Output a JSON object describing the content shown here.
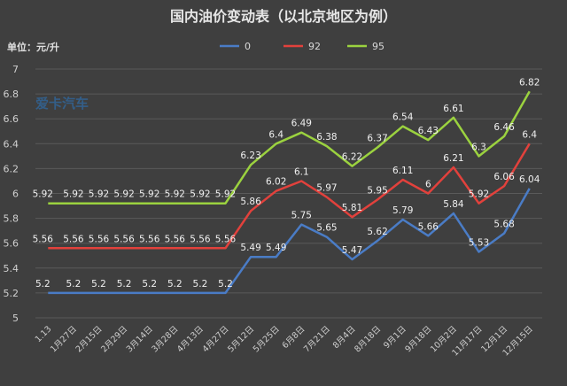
{
  "chart_data": {
    "type": "line",
    "title": "国内油价变动表（以北京地区为例）",
    "unit_label": "单位：元/升",
    "watermark": "爱卡汽车",
    "categories": [
      "1.13",
      "1月27日",
      "2月15日",
      "2月29日",
      "3月14日",
      "3月28日",
      "4月13日",
      "4月27日",
      "5月12日",
      "5月25日",
      "6月8日",
      "7月21日",
      "8月4日",
      "8月18日",
      "9月1日",
      "9月18日",
      "10月2日",
      "11月17日",
      "12月1日",
      "12月15日"
    ],
    "series": [
      {
        "name": "0",
        "color": "#4a7cc6",
        "values": [
          5.2,
          5.2,
          5.2,
          5.2,
          5.2,
          5.2,
          5.2,
          5.2,
          5.49,
          5.49,
          5.75,
          5.65,
          5.47,
          5.62,
          5.79,
          5.66,
          5.84,
          5.53,
          5.68,
          6.04
        ]
      },
      {
        "name": "92",
        "color": "#e2413c",
        "values": [
          5.56,
          5.56,
          5.56,
          5.56,
          5.56,
          5.56,
          5.56,
          5.56,
          5.86,
          6.02,
          6.1,
          5.97,
          5.81,
          5.95,
          6.11,
          6.0,
          6.21,
          5.92,
          6.06,
          6.4
        ]
      },
      {
        "name": "95",
        "color": "#9bd23f",
        "values": [
          5.92,
          5.92,
          5.92,
          5.92,
          5.92,
          5.92,
          5.92,
          5.92,
          6.23,
          6.4,
          6.49,
          6.38,
          6.22,
          6.37,
          6.54,
          6.43,
          6.61,
          6.3,
          6.46,
          6.82
        ]
      }
    ],
    "data_labels": [
      [
        "5.2",
        "5.2",
        "5.2",
        "5.2",
        "5.2",
        "5.2",
        "5.2",
        "5.2",
        "5.49",
        "5.49",
        "5.75",
        "5.65",
        "5.47",
        "5.62",
        "5.79",
        "5.66",
        "5.84",
        "5.53",
        "5.68",
        "6.04"
      ],
      [
        "5.56",
        "5.56",
        "5.56",
        "5.56",
        "5.56",
        "5.56",
        "5.56",
        "5.56",
        "5.86",
        "6.02",
        "6.1",
        "5.97",
        "5.81",
        "5.95",
        "6.11",
        "6",
        "6.21",
        "5.92",
        "6.06",
        "6.4"
      ],
      [
        "5.92",
        "5.92",
        "5.92",
        "5.92",
        "5.92",
        "5.92",
        "5.92",
        "5.92",
        "6.23",
        "6.4",
        "6.49",
        "6.38",
        "6.22",
        "6.37",
        "6.54",
        "6.43",
        "6.61",
        "6.3",
        "6.46",
        "6.82"
      ]
    ],
    "y_ticks": [
      "5",
      "5.2",
      "5.4",
      "5.6",
      "5.8",
      "6",
      "6.2",
      "6.4",
      "6.6",
      "6.8",
      "7"
    ],
    "ylim": [
      5,
      7
    ],
    "grid": true,
    "legend_position": "top-center"
  }
}
